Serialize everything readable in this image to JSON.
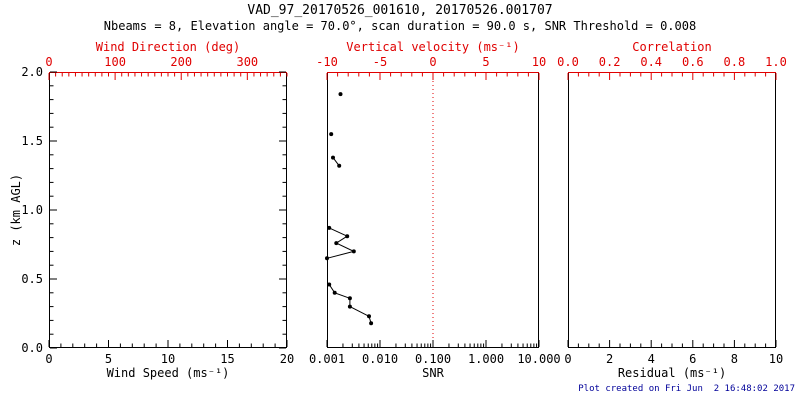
{
  "header": {
    "title": "VAD_97_20170526_001610, 20170526.001707",
    "subtitle": "Nbeams = 8, Elevation angle = 70.0°, scan duration = 90.0 s, SNR Threshold = 0.008"
  },
  "footer": {
    "text": "Plot created on Fri Jun  2 16:48:02 2017",
    "color": "#000099"
  },
  "colors": {
    "primary_axis": "#000000",
    "secondary_axis": "#e00000",
    "data": "#000000",
    "background": "#ffffff"
  },
  "y_axis": {
    "label": "z (km AGL)",
    "lim": [
      0,
      2
    ],
    "ticks": [
      0,
      0.5,
      1,
      1.5,
      2
    ],
    "tick_labels": [
      "0.0",
      "0.5",
      "1.0",
      "1.5",
      "2.0"
    ],
    "minor_step": 0.1
  },
  "chart_data": [
    {
      "type": "scatter",
      "panel": "wind-speed",
      "xlabel": "Wind Speed (ms⁻¹)",
      "xscale": "linear",
      "xlim": [
        0,
        20
      ],
      "xticks": [
        0,
        5,
        10,
        15,
        20
      ],
      "xtick_labels": [
        "0",
        "5",
        "10",
        "15",
        "20"
      ],
      "x_minor_step": 1,
      "top_axis": {
        "label": "Wind Direction (deg)",
        "xlim": [
          0,
          360
        ],
        "ticks": [
          0,
          100,
          200,
          300
        ],
        "tick_labels": [
          "0",
          "100",
          "200",
          "300"
        ],
        "minor_step": 10
      },
      "ylabel": "z (km AGL)",
      "ylim": [
        0,
        2
      ],
      "grid": false,
      "series": []
    },
    {
      "type": "scatter",
      "panel": "snr",
      "xlabel": "SNR",
      "xscale": "log",
      "xlim": [
        0.001,
        10
      ],
      "xticks": [
        0.001,
        0.01,
        0.1,
        1,
        10
      ],
      "xtick_labels": [
        "0.001",
        "0.010",
        "0.100",
        "1.000",
        "10.000"
      ],
      "top_axis": {
        "label": "Vertical velocity (ms⁻¹)",
        "xlim": [
          -10,
          10
        ],
        "ticks": [
          -10,
          -5,
          0,
          5,
          10
        ],
        "tick_labels": [
          "-10",
          "-5",
          "0",
          "5",
          "10"
        ],
        "minor_step": 1
      },
      "ylim": [
        0,
        2
      ],
      "grid": false,
      "reference_line": {
        "orientation": "vertical",
        "axis": "top",
        "value": 0,
        "style": "dotted",
        "color": "#e00000"
      },
      "series": [
        {
          "name": "snr-point-1p84km",
          "points": [
            {
              "snr": 0.0018,
              "z": 1.84
            }
          ]
        },
        {
          "name": "snr-point-1p55km",
          "points": [
            {
              "snr": 0.0012,
              "z": 1.55
            }
          ]
        },
        {
          "name": "snr-segment-1p3km",
          "points": [
            {
              "snr": 0.0013,
              "z": 1.38
            },
            {
              "snr": 0.0017,
              "z": 1.32
            }
          ]
        },
        {
          "name": "snr-segment-mid",
          "points": [
            {
              "snr": 0.0011,
              "z": 0.87
            },
            {
              "snr": 0.0024,
              "z": 0.81
            },
            {
              "snr": 0.0015,
              "z": 0.76
            },
            {
              "snr": 0.0032,
              "z": 0.7
            },
            {
              "snr": 0.001,
              "z": 0.65
            }
          ]
        },
        {
          "name": "snr-segment-low",
          "points": [
            {
              "snr": 0.0011,
              "z": 0.46
            },
            {
              "snr": 0.0014,
              "z": 0.4
            },
            {
              "snr": 0.0027,
              "z": 0.36
            },
            {
              "snr": 0.0027,
              "z": 0.3
            },
            {
              "snr": 0.0062,
              "z": 0.23
            },
            {
              "snr": 0.0068,
              "z": 0.18
            }
          ]
        }
      ]
    },
    {
      "type": "scatter",
      "panel": "residual",
      "xlabel": "Residual (ms⁻¹)",
      "xscale": "linear",
      "xlim": [
        0,
        10
      ],
      "xticks": [
        0,
        2,
        4,
        6,
        8,
        10
      ],
      "xtick_labels": [
        "0",
        "2",
        "4",
        "6",
        "8",
        "10"
      ],
      "x_minor_step": 0.5,
      "top_axis": {
        "label": "Correlation",
        "xlim": [
          0,
          1
        ],
        "ticks": [
          0,
          0.2,
          0.4,
          0.6,
          0.8,
          1
        ],
        "tick_labels": [
          "0.0",
          "0.2",
          "0.4",
          "0.6",
          "0.8",
          "1.0"
        ],
        "minor_step": 0.05
      },
      "ylim": [
        0,
        2
      ],
      "grid": false,
      "series": []
    }
  ]
}
